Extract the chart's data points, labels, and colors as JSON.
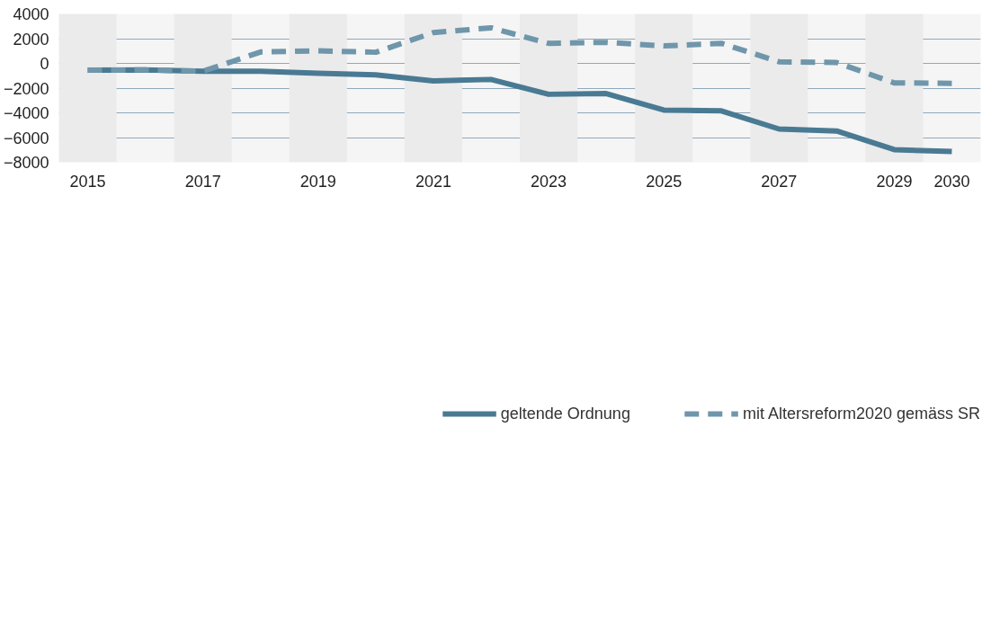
{
  "chart_data": {
    "type": "line",
    "x": [
      2015,
      2016,
      2017,
      2018,
      2019,
      2020,
      2021,
      2022,
      2023,
      2024,
      2025,
      2026,
      2027,
      2028,
      2029,
      2030
    ],
    "series": [
      {
        "name": "geltende Ordnung",
        "color": "#4a7a93",
        "line_style": "solid",
        "values": [
          -550,
          -530,
          -630,
          -640,
          -800,
          -920,
          -1420,
          -1300,
          -2500,
          -2440,
          -3780,
          -3840,
          -5310,
          -5470,
          -6980,
          -7130
        ]
      },
      {
        "name": "mit Altersreform2020 gemäss SR",
        "color": "#6f96ab",
        "line_style": "dashed",
        "values": [
          -550,
          -530,
          -640,
          920,
          1020,
          900,
          2490,
          2880,
          1620,
          1700,
          1410,
          1620,
          130,
          70,
          -1580,
          -1610
        ]
      }
    ],
    "xlim": [
      2014.5,
      2030.5
    ],
    "xticks": [
      2015,
      2017,
      2019,
      2021,
      2023,
      2025,
      2027,
      2029,
      2030
    ],
    "ylim": [
      -8000,
      4000
    ],
    "yticks": [
      -8000,
      -6000,
      -4000,
      -2000,
      0,
      2000,
      4000
    ],
    "bands": [
      {
        "axis": "x",
        "from": 2014.5,
        "to": 2015.5,
        "color": "#ebebeb"
      },
      {
        "axis": "x",
        "from": 2016.5,
        "to": 2017.5,
        "color": "#ebebeb"
      },
      {
        "axis": "x",
        "from": 2018.5,
        "to": 2019.5,
        "color": "#ebebeb"
      },
      {
        "axis": "x",
        "from": 2020.5,
        "to": 2021.5,
        "color": "#ebebeb"
      },
      {
        "axis": "x",
        "from": 2022.5,
        "to": 2023.5,
        "color": "#ebebeb"
      },
      {
        "axis": "x",
        "from": 2024.5,
        "to": 2025.5,
        "color": "#ebebeb"
      },
      {
        "axis": "x",
        "from": 2026.5,
        "to": 2027.5,
        "color": "#ebebeb"
      },
      {
        "axis": "x",
        "from": 2028.5,
        "to": 2029.5,
        "color": "#ebebeb"
      }
    ],
    "grid": "y",
    "legend": "bottom",
    "marker": "none"
  }
}
